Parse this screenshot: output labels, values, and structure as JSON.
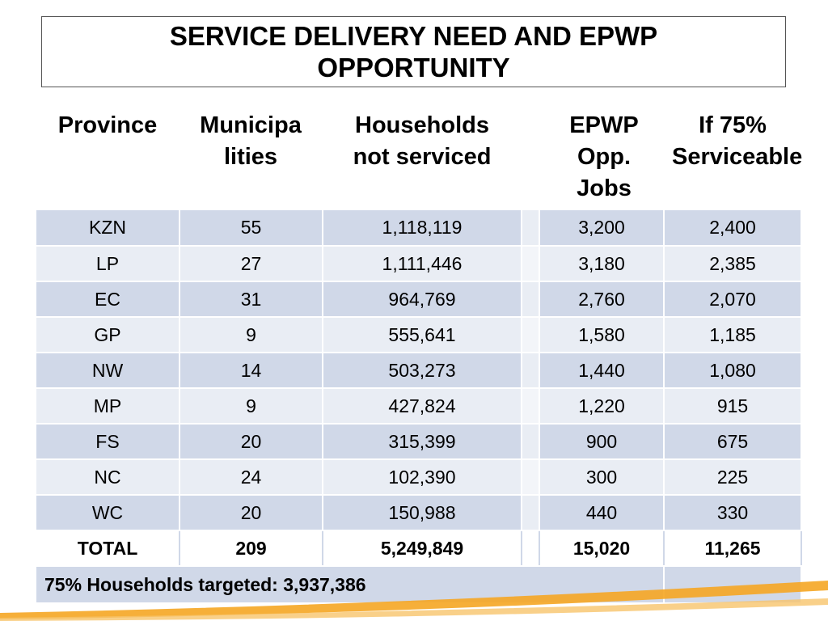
{
  "title": "SERVICE DELIVERY NEED AND EPWP OPPORTUNITY",
  "headers": {
    "province": "Province",
    "municipalities": "Municipa lities",
    "households": "Households not serviced",
    "epwp": "EPWP Opp. Jobs",
    "serviceable": "If 75% Serviceable"
  },
  "rows": [
    {
      "province": "KZN",
      "municipalities": "55",
      "households": "1,118,119",
      "epwp": "3,200",
      "serviceable": "2,400"
    },
    {
      "province": "LP",
      "municipalities": "27",
      "households": "1,111,446",
      "epwp": "3,180",
      "serviceable": "2,385"
    },
    {
      "province": "EC",
      "municipalities": "31",
      "households": "964,769",
      "epwp": "2,760",
      "serviceable": "2,070"
    },
    {
      "province": "GP",
      "municipalities": "9",
      "households": "555,641",
      "epwp": "1,580",
      "serviceable": "1,185"
    },
    {
      "province": "NW",
      "municipalities": "14",
      "households": "503,273",
      "epwp": "1,440",
      "serviceable": "1,080"
    },
    {
      "province": "MP",
      "municipalities": "9",
      "households": "427,824",
      "epwp": "1,220",
      "serviceable": "915"
    },
    {
      "province": "FS",
      "municipalities": "20",
      "households": "315,399",
      "epwp": "900",
      "serviceable": "675"
    },
    {
      "province": "NC",
      "municipalities": "24",
      "households": "102,390",
      "epwp": "300",
      "serviceable": "225"
    },
    {
      "province": "WC",
      "municipalities": "20",
      "households": "150,988",
      "epwp": "440",
      "serviceable": "330"
    }
  ],
  "total": {
    "province": "TOTAL",
    "municipalities": "209",
    "households": "5,249,849",
    "epwp": "15,020",
    "serviceable": "11,265"
  },
  "footer": "75% Households targeted: 3,937,386",
  "colors": {
    "row_odd": "#d0d8e8",
    "row_even": "#e9edf4",
    "accent": "#f5a623"
  }
}
